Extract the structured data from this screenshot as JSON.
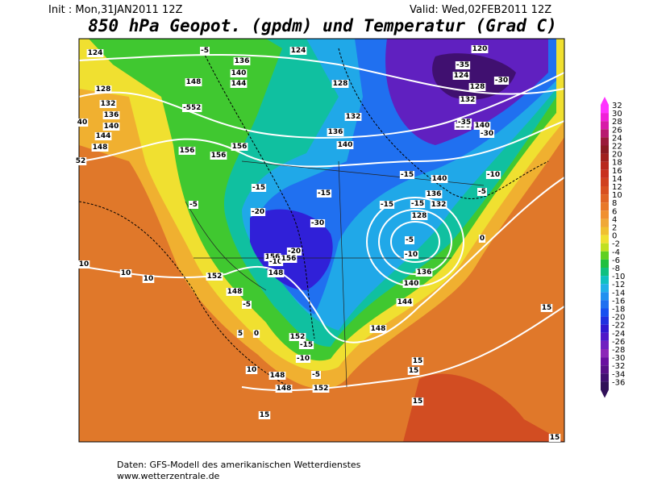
{
  "header": {
    "init": "Init : Mon,31JAN2011 12Z",
    "valid": "Valid: Wed,02FEB2011 12Z",
    "title": "850 hPa Geopot. (gpdm) und Temperatur (Grad C)"
  },
  "colorbar": {
    "labels": [
      32,
      30,
      28,
      26,
      24,
      22,
      20,
      18,
      16,
      14,
      12,
      10,
      8,
      6,
      4,
      2,
      0,
      -2,
      -4,
      -6,
      -8,
      -10,
      -12,
      -14,
      -16,
      -18,
      -20,
      -22,
      -24,
      -26,
      -28,
      -30,
      -32,
      -34,
      -36
    ],
    "colors": [
      "#ff33ff",
      "#f020d8",
      "#d81aa8",
      "#b81a70",
      "#9a1a3a",
      "#8a1a22",
      "#a0201e",
      "#b8281e",
      "#c8301e",
      "#d0401e",
      "#d85020",
      "#e06424",
      "#e87828",
      "#f09030",
      "#f0a838",
      "#f0c030",
      "#f0e030",
      "#c0e020",
      "#60d020",
      "#20c040",
      "#10c080",
      "#10c0c0",
      "#20b0e8",
      "#2090f0",
      "#2070f0",
      "#1850f0",
      "#2030e0",
      "#3018d0",
      "#5018c8",
      "#7020c0",
      "#8c28b8",
      "#6a10a0",
      "#581088",
      "#401070",
      "#301058"
    ]
  },
  "map": {
    "contour_labels": [
      "124",
      "-5",
      "124",
      "120",
      "-35",
      "124",
      "-30",
      "128",
      "128",
      "132",
      "136",
      "140",
      "144",
      "148",
      "152",
      "156",
      "156",
      "156",
      "136",
      "140",
      "148",
      "144",
      "128",
      "132",
      "136",
      "140",
      "132",
      "136",
      "-35",
      "140",
      "-30",
      "-15",
      "140",
      "-10",
      "-15",
      "-15",
      "-15",
      "136",
      "132",
      "128",
      "-15",
      "-20",
      "-30",
      "-5",
      "-5",
      "-10",
      "-20",
      "156",
      "-10",
      "156",
      "152",
      "148",
      "136",
      "140",
      "148",
      "-5",
      "144",
      "10",
      "10",
      "10",
      "5",
      "0",
      "152",
      "-15",
      "-10",
      "-5",
      "148",
      "148",
      "148",
      "152",
      "10",
      "15",
      "15",
      "15",
      "15",
      "15",
      "15",
      "-5",
      "0",
      "-5",
      "52",
      "40"
    ]
  },
  "footer": {
    "line1": "Daten: GFS-Modell des amerikanischen Wetterdienstes",
    "line2": "www.wetterzentrale.de"
  }
}
